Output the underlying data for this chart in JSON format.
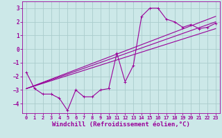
{
  "title": "",
  "xlabel": "Windchill (Refroidissement éolien,°C)",
  "ylabel": "",
  "xlim": [
    -0.5,
    23.5
  ],
  "ylim": [
    -4.7,
    3.5
  ],
  "xticks": [
    0,
    1,
    2,
    3,
    4,
    5,
    6,
    7,
    8,
    9,
    10,
    11,
    12,
    13,
    14,
    15,
    16,
    17,
    18,
    19,
    20,
    21,
    22,
    23
  ],
  "yticks": [
    -4,
    -3,
    -2,
    -1,
    0,
    1,
    2,
    3
  ],
  "bg_color": "#cce8e8",
  "grid_color": "#aacccc",
  "line_color": "#990099",
  "line1_x": [
    0,
    1,
    2,
    3,
    4,
    5,
    6,
    7,
    8,
    9,
    10,
    11,
    12,
    13,
    14,
    15,
    16,
    17,
    18,
    19,
    20,
    21,
    22,
    23
  ],
  "line1_y": [
    -1.7,
    -2.9,
    -3.3,
    -3.3,
    -3.6,
    -4.5,
    -3.0,
    -3.5,
    -3.5,
    -3.0,
    -2.9,
    -0.3,
    -2.4,
    -1.2,
    2.4,
    3.0,
    3.0,
    2.2,
    2.0,
    1.6,
    1.8,
    1.5,
    1.6,
    1.9
  ],
  "line2_x": [
    0,
    23
  ],
  "line2_y": [
    -2.9,
    1.5
  ],
  "line3_x": [
    0,
    23
  ],
  "line3_y": [
    -2.9,
    2.0
  ],
  "line4_x": [
    0,
    23
  ],
  "line4_y": [
    -2.9,
    2.4
  ],
  "font_family": "monospace",
  "tick_fontsize": 5.0,
  "xlabel_fontsize": 6.5
}
